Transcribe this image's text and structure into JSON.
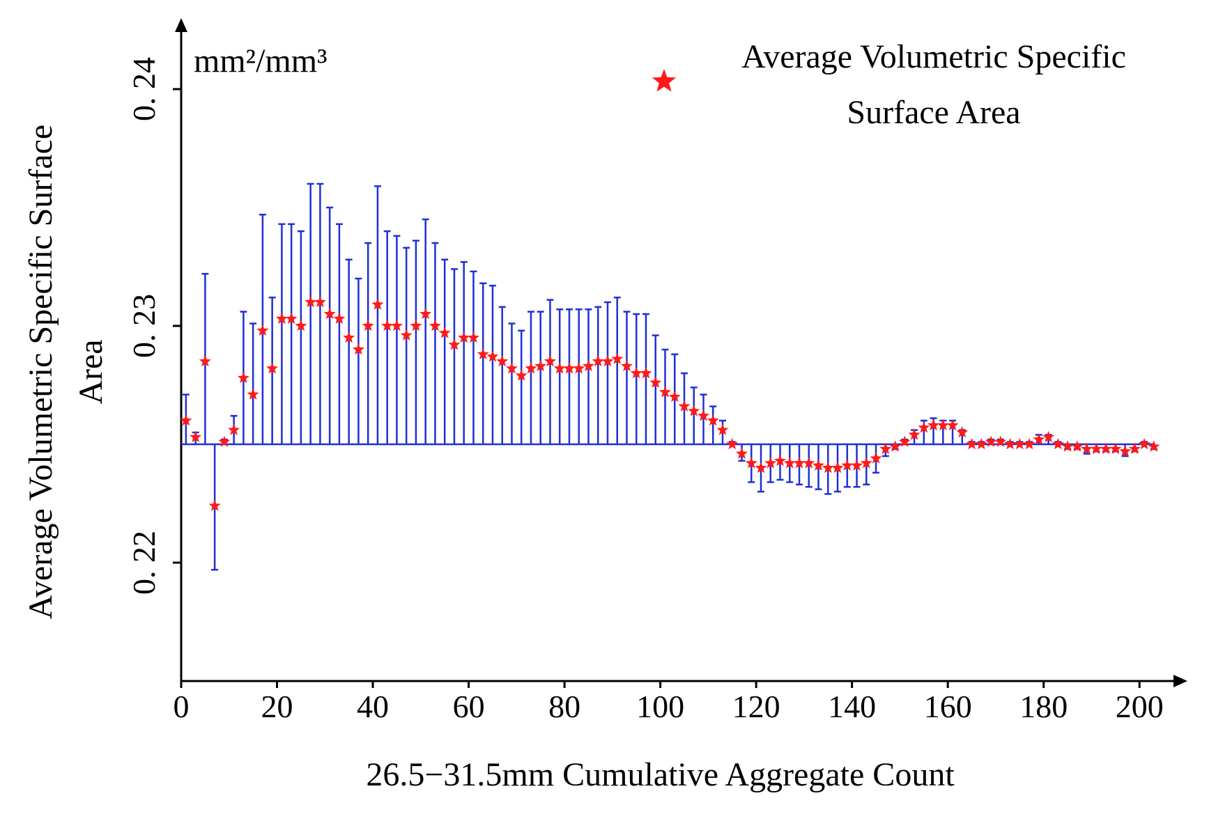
{
  "chart_data": {
    "type": "scatter_bar_error",
    "ylabel": "Average Volumetric Specific Surface Area",
    "y_unit": "mm²/mm³",
    "xlabel": "26.5−31.5mm Cumulative Aggregate Count",
    "xlim": [
      0,
      210
    ],
    "ylim": [
      0.215,
      0.243
    ],
    "xticks": [
      0,
      20,
      40,
      60,
      80,
      100,
      120,
      140,
      160,
      180,
      200
    ],
    "yticks": [
      {
        "value": 0.22,
        "label": "0. 22"
      },
      {
        "value": 0.23,
        "label": "0. 23"
      },
      {
        "value": 0.24,
        "label": "0. 24"
      }
    ],
    "baseline": 0.225,
    "bar_color": "#1f2fd6",
    "series": [
      {
        "name": "Average Volumetric Specific Surface Area",
        "color": "#ff1a1a",
        "x": [
          1,
          3,
          5,
          7,
          9,
          11,
          13,
          15,
          17,
          19,
          21,
          23,
          25,
          27,
          29,
          31,
          33,
          35,
          37,
          39,
          41,
          43,
          45,
          47,
          49,
          51,
          53,
          55,
          57,
          59,
          61,
          63,
          65,
          67,
          69,
          71,
          73,
          75,
          77,
          79,
          81,
          83,
          85,
          87,
          89,
          91,
          93,
          95,
          97,
          99,
          101,
          103,
          105,
          107,
          109,
          111,
          113,
          115,
          117,
          119,
          121,
          123,
          125,
          127,
          129,
          131,
          133,
          135,
          137,
          139,
          141,
          143,
          145,
          147,
          149,
          151,
          153,
          155,
          157,
          159,
          161,
          163,
          165,
          167,
          169,
          171,
          173,
          175,
          177,
          179,
          181,
          183,
          185,
          187,
          189,
          191,
          193,
          195,
          197,
          199,
          201,
          203
        ],
        "values": [
          0.226,
          0.2253,
          0.2285,
          0.2224,
          0.2251,
          0.2256,
          0.2278,
          0.2271,
          0.2298,
          0.2282,
          0.2303,
          0.2303,
          0.23,
          0.231,
          0.231,
          0.2305,
          0.2303,
          0.2295,
          0.229,
          0.23,
          0.2309,
          0.23,
          0.23,
          0.2296,
          0.23,
          0.2305,
          0.23,
          0.2297,
          0.2292,
          0.2295,
          0.2295,
          0.2288,
          0.2287,
          0.2285,
          0.2282,
          0.2279,
          0.2282,
          0.2283,
          0.2285,
          0.2282,
          0.2282,
          0.2282,
          0.2283,
          0.2285,
          0.2285,
          0.2286,
          0.2283,
          0.228,
          0.228,
          0.2276,
          0.2272,
          0.227,
          0.2266,
          0.2264,
          0.2262,
          0.226,
          0.2256,
          0.225,
          0.2246,
          0.2242,
          0.224,
          0.2242,
          0.2243,
          0.2242,
          0.2242,
          0.2242,
          0.2241,
          0.224,
          0.224,
          0.2241,
          0.2241,
          0.2242,
          0.2244,
          0.2248,
          0.2249,
          0.2251,
          0.2254,
          0.2257,
          0.2258,
          0.2258,
          0.2258,
          0.2255,
          0.225,
          0.225,
          0.2251,
          0.2251,
          0.225,
          0.225,
          0.225,
          0.2252,
          0.2253,
          0.225,
          0.2249,
          0.2249,
          0.2248,
          0.2248,
          0.2248,
          0.2248,
          0.2247,
          0.2248,
          0.225,
          0.2249
        ],
        "errors": [
          0.0011,
          0.0002,
          0.0037,
          0.0027,
          0.0001,
          0.0006,
          0.0028,
          0.003,
          0.0049,
          0.003,
          0.004,
          0.004,
          0.004,
          0.005,
          0.005,
          0.0045,
          0.004,
          0.0033,
          0.003,
          0.0035,
          0.005,
          0.004,
          0.0038,
          0.0037,
          0.0036,
          0.004,
          0.0035,
          0.0031,
          0.0032,
          0.0032,
          0.0028,
          0.003,
          0.003,
          0.0023,
          0.0019,
          0.0019,
          0.0024,
          0.0023,
          0.0026,
          0.0025,
          0.0025,
          0.0025,
          0.0024,
          0.0023,
          0.0025,
          0.0026,
          0.0023,
          0.0025,
          0.0025,
          0.002,
          0.0018,
          0.0018,
          0.0014,
          0.001,
          0.0009,
          0.0006,
          0.0004,
          0.0001,
          0.0003,
          0.0008,
          0.001,
          0.0008,
          0.0008,
          0.0008,
          0.0009,
          0.001,
          0.001,
          0.0011,
          0.001,
          0.0009,
          0.0009,
          0.0009,
          0.0006,
          0.0003,
          0.0001,
          0.0001,
          0.0002,
          0.0003,
          0.0003,
          0.0002,
          0.0002,
          0.0001,
          0.0001,
          0.0001,
          0.0001,
          0.0001,
          0.0001,
          0.0001,
          0.0001,
          0.0002,
          0.0001,
          0.0001,
          0.0001,
          0.0001,
          0.0002,
          0.0001,
          0.0001,
          0.0001,
          0.0002,
          0.0001,
          0.0001,
          0.0001
        ]
      }
    ]
  }
}
